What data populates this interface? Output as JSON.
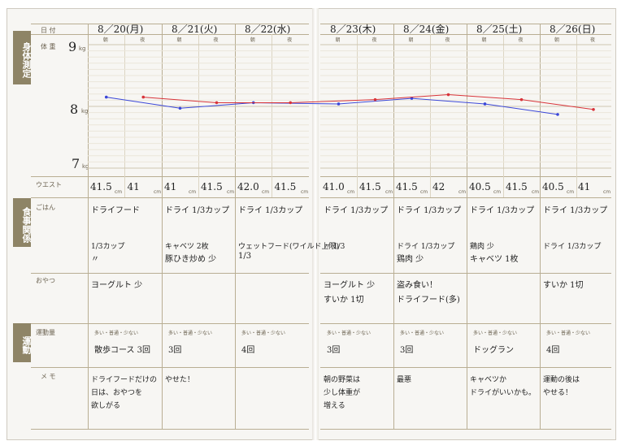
{
  "labels": {
    "date": "日 付",
    "weight": "体 重",
    "waist": "ウエスト",
    "rice": "ごはん",
    "snack": "おやつ",
    "exercise": "運動量",
    "memo": "メ モ",
    "kg": "kg",
    "cm": "cm",
    "morning": "朝",
    "night": "夜",
    "effort_scale": "多い・普通・少ない",
    "w9": "9",
    "w8": "8",
    "w7": "7"
  },
  "sections": {
    "body": "身体測定",
    "meal": "食事関係",
    "exercise": "運動"
  },
  "days": [
    {
      "date": "8／20(月)",
      "waist_m": "41.5",
      "waist_n": "41",
      "rice_1": "ドライフード",
      "rice_2": "1/3カップ",
      "rice_3": "〃",
      "snack": "ヨーグルト 少",
      "exercise": "散歩コース 3回",
      "memo_1": "ドライフードだけの",
      "memo_2": "日は、おやつを",
      "memo_3": "欲しがる"
    },
    {
      "date": "8／21(火)",
      "waist_m": "41",
      "waist_n": "41.5",
      "rice_1": "ドライ 1/3カップ",
      "rice_2": "キャベツ 2枚",
      "rice_3": "豚ひき炒め 少",
      "snack": "",
      "exercise": "3回",
      "memo_1": "やせた！",
      "memo_2": "",
      "memo_3": ""
    },
    {
      "date": "8／22(水)",
      "waist_m": "42.0",
      "waist_n": "41.5",
      "rice_1": "ドライ 1/3カップ",
      "rice_2": "ウェットフード(ワイルド上限)",
      "rice_3": "1/3",
      "snack": "",
      "exercise": "4回",
      "memo_1": "",
      "memo_2": "",
      "memo_3": ""
    },
    {
      "date": "8／23(木)",
      "waist_m": "41.0",
      "waist_n": "41.5",
      "rice_1": "ドライ 1/3カップ",
      "rice_2": "〃 1/3",
      "rice_3": "",
      "snack": "ヨーグルト 少",
      "snack_2": "すいか 1切",
      "exercise": "3回",
      "memo_1": "朝の野菜は",
      "memo_2": "少し体重が",
      "memo_3": "増える"
    },
    {
      "date": "8／24(金)",
      "waist_m": "41.5",
      "waist_n": "42",
      "rice_1": "ドライ 1/3カップ",
      "rice_2": "ドライ 1/3カップ",
      "rice_3": "鶏肉 少",
      "snack": "盗み食い！",
      "snack_2": "ドライフード(多)",
      "exercise": "3回",
      "memo_1": "最悪",
      "memo_2": "",
      "memo_3": ""
    },
    {
      "date": "8／25(土)",
      "waist_m": "40.5",
      "waist_n": "41.5",
      "rice_1": "ドライ 1/3カップ",
      "rice_2": "鶏肉 少",
      "rice_3": "キャベツ 1枚",
      "snack": "",
      "exercise": "ドッグラン",
      "memo_1": "キャベツか",
      "memo_2": "ドライがいいかも。",
      "memo_3": ""
    },
    {
      "date": "8／26(日)",
      "waist_m": "40.5",
      "waist_n": "41",
      "rice_1": "ドライ 1/3カップ",
      "rice_2": "ドライ 1/3カップ",
      "rice_3": "",
      "snack": "すいか 1切",
      "exercise": "4回",
      "memo_1": "運動の後は",
      "memo_2": "やせる！",
      "memo_3": ""
    }
  ],
  "chart_data": {
    "type": "line",
    "ylim": [
      7,
      9
    ],
    "x": [
      "8/20朝",
      "8/20夜",
      "8/21朝",
      "8/21夜",
      "8/22朝",
      "8/22夜",
      "8/23朝",
      "8/23夜",
      "8/24朝",
      "8/24夜",
      "8/25朝",
      "8/25夜",
      "8/26朝",
      "8/26夜"
    ],
    "series": [
      {
        "color": "#3a46d8",
        "values": [
          8.15,
          null,
          7.97,
          null,
          8.06,
          null,
          8.04,
          null,
          8.13,
          null,
          8.04,
          null,
          7.87,
          null
        ]
      },
      {
        "color": "#d8343a",
        "values": [
          null,
          8.15,
          null,
          8.06,
          null,
          8.06,
          null,
          8.11,
          null,
          8.19,
          null,
          8.11,
          null,
          7.95
        ]
      }
    ]
  },
  "colors": {
    "sidebar": "#8e8466",
    "line": "#b9ae93",
    "paper": "#f7f6f3"
  }
}
